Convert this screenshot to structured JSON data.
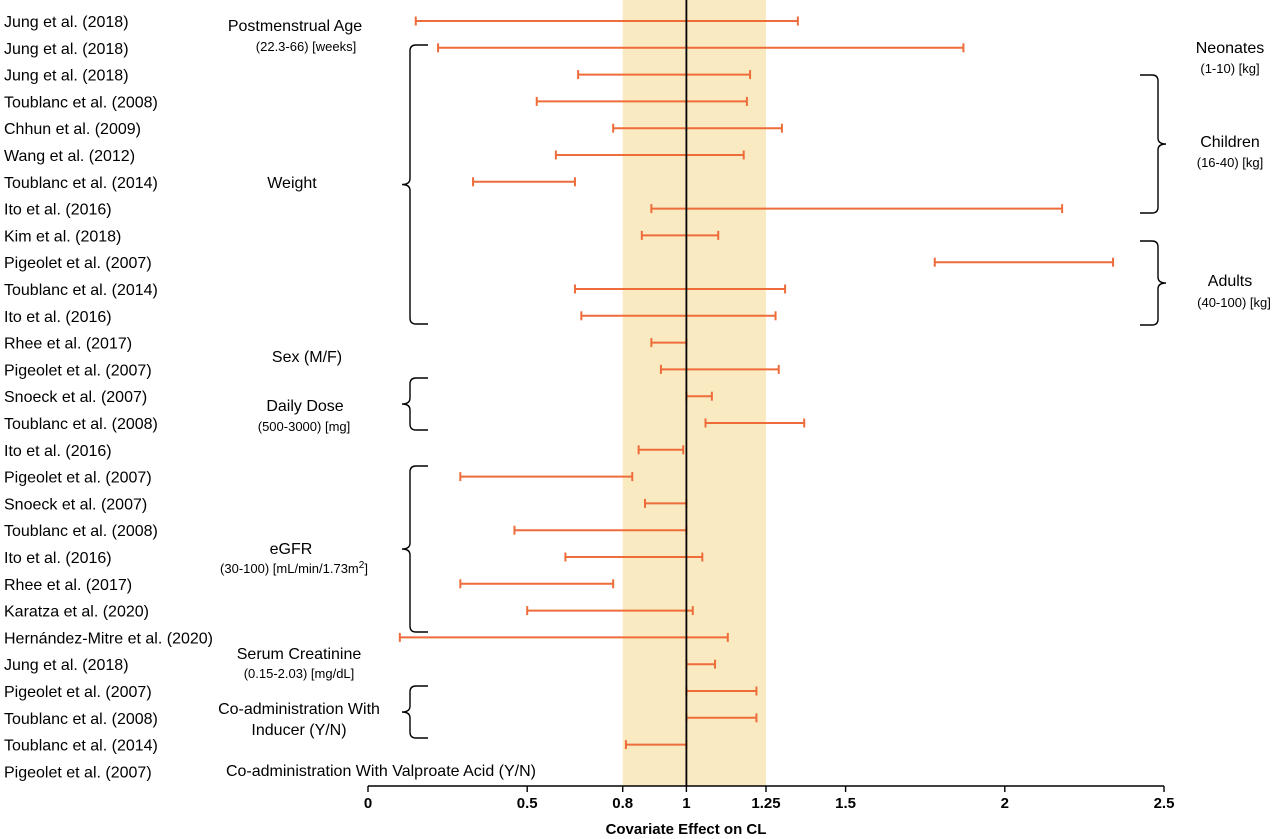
{
  "chart_data": {
    "type": "forest",
    "xlabel": "Covariate Effect on CL",
    "xlim": [
      0,
      2.5
    ],
    "xticks": [
      "0",
      "0.5",
      "0.8",
      "1",
      "1.25",
      "1.5",
      "2",
      "2.5"
    ],
    "xtick_values": [
      0,
      0.5,
      0.8,
      1,
      1.25,
      1.5,
      2,
      2.5
    ],
    "reference_line": 1,
    "shaded_band": [
      0.8,
      1.25
    ],
    "colors": {
      "band": "#faeac2",
      "interval": "#ee6c3a",
      "ref_line": "#000000"
    },
    "rows": [
      {
        "study": "Jung et al. (2018)",
        "low": 0.15,
        "high": 1.35
      },
      {
        "study": "Jung et al. (2018)",
        "low": 0.22,
        "high": 1.87
      },
      {
        "study": "Jung et al. (2018)",
        "low": 0.66,
        "high": 1.2
      },
      {
        "study": "Toublanc et al. (2008)",
        "low": 0.53,
        "high": 1.19
      },
      {
        "study": "Chhun et al. (2009)",
        "low": 0.77,
        "high": 1.3
      },
      {
        "study": "Wang et al. (2012)",
        "low": 0.59,
        "high": 1.18
      },
      {
        "study": "Toublanc et al. (2014)",
        "low": 0.33,
        "high": 0.65
      },
      {
        "study": "Ito et al. (2016)",
        "low": 0.89,
        "high": 2.18
      },
      {
        "study": "Kim et al. (2018)",
        "low": 0.86,
        "high": 1.1
      },
      {
        "study": "Pigeolet et al. (2007)",
        "low": 1.78,
        "high": 2.34
      },
      {
        "study": "Toublanc et al. (2014)",
        "low": 0.65,
        "high": 1.31
      },
      {
        "study": "Ito et al. (2016)",
        "low": 0.67,
        "high": 1.28
      },
      {
        "study": "Rhee et al. (2017)",
        "low": 0.89,
        "high": 1.0
      },
      {
        "study": "Pigeolet et al. (2007)",
        "low": 0.92,
        "high": 1.29
      },
      {
        "study": "Snoeck et al. (2007)",
        "low": 1.0,
        "high": 1.08
      },
      {
        "study": "Toublanc et al. (2008)",
        "low": 1.06,
        "high": 1.37
      },
      {
        "study": "Ito et al. (2016)",
        "low": 0.85,
        "high": 0.99
      },
      {
        "study": "Pigeolet et al. (2007)",
        "low": 0.29,
        "high": 0.83
      },
      {
        "study": "Snoeck et al. (2007)",
        "low": 0.87,
        "high": 1.0
      },
      {
        "study": "Toublanc et al. (2008)",
        "low": 0.46,
        "high": 1.0
      },
      {
        "study": "Ito et al. (2016)",
        "low": 0.62,
        "high": 1.05
      },
      {
        "study": "Rhee et al. (2017)",
        "low": 0.29,
        "high": 0.77
      },
      {
        "study": "Karatza et al. (2020)",
        "low": 0.5,
        "high": 1.02
      },
      {
        "study": "Hernández-Mitre et al. (2020)",
        "low": 0.1,
        "high": 1.13
      },
      {
        "study": "Jung et al. (2018)",
        "low": 1.0,
        "high": 1.09
      },
      {
        "study": "Pigeolet et al. (2007)",
        "low": 1.0,
        "high": 1.22
      },
      {
        "study": "Toublanc et al. (2008)",
        "low": 1.0,
        "high": 1.22
      },
      {
        "study": "Toublanc et al. (2014)",
        "low": 0.81,
        "high": 1.0
      },
      {
        "study": "Pigeolet et al. (2007)",
        "low": null,
        "high": null
      }
    ],
    "covariates": [
      {
        "name": "Postmenstrual Age",
        "range": "(22.3-66) [weeks]",
        "rows": [
          0,
          0
        ]
      },
      {
        "name": "Weight",
        "range": "",
        "rows": [
          1,
          11
        ]
      },
      {
        "name": "Sex (M/F)",
        "range": "",
        "rows": [
          12,
          12
        ]
      },
      {
        "name": "Daily Dose",
        "range": "(500-3000) [mg]",
        "rows": [
          13,
          15
        ]
      },
      {
        "name": "eGFR",
        "range": "(30-100) [mL/min/1.73m",
        "range_sup": "2",
        "range_end": "]",
        "rows": [
          16,
          22
        ]
      },
      {
        "name": "Serum Creatinine",
        "range": "(0.15-2.03) [mg/dL]",
        "rows": [
          23,
          23
        ]
      },
      {
        "name": "Co-administration With",
        "name2": "Inducer (Y/N)",
        "range": "",
        "rows": [
          24,
          26
        ]
      },
      {
        "name": "Co-administration With Valproate Acid (Y/N)",
        "range": "",
        "rows": [
          27,
          27
        ]
      }
    ],
    "weight_groups": [
      {
        "name": "Neonates",
        "range": "(1-10) [kg]"
      },
      {
        "name": "Children",
        "range": "(16-40) [kg]"
      },
      {
        "name": "Adults",
        "range": "(40-100) [kg]"
      }
    ]
  }
}
